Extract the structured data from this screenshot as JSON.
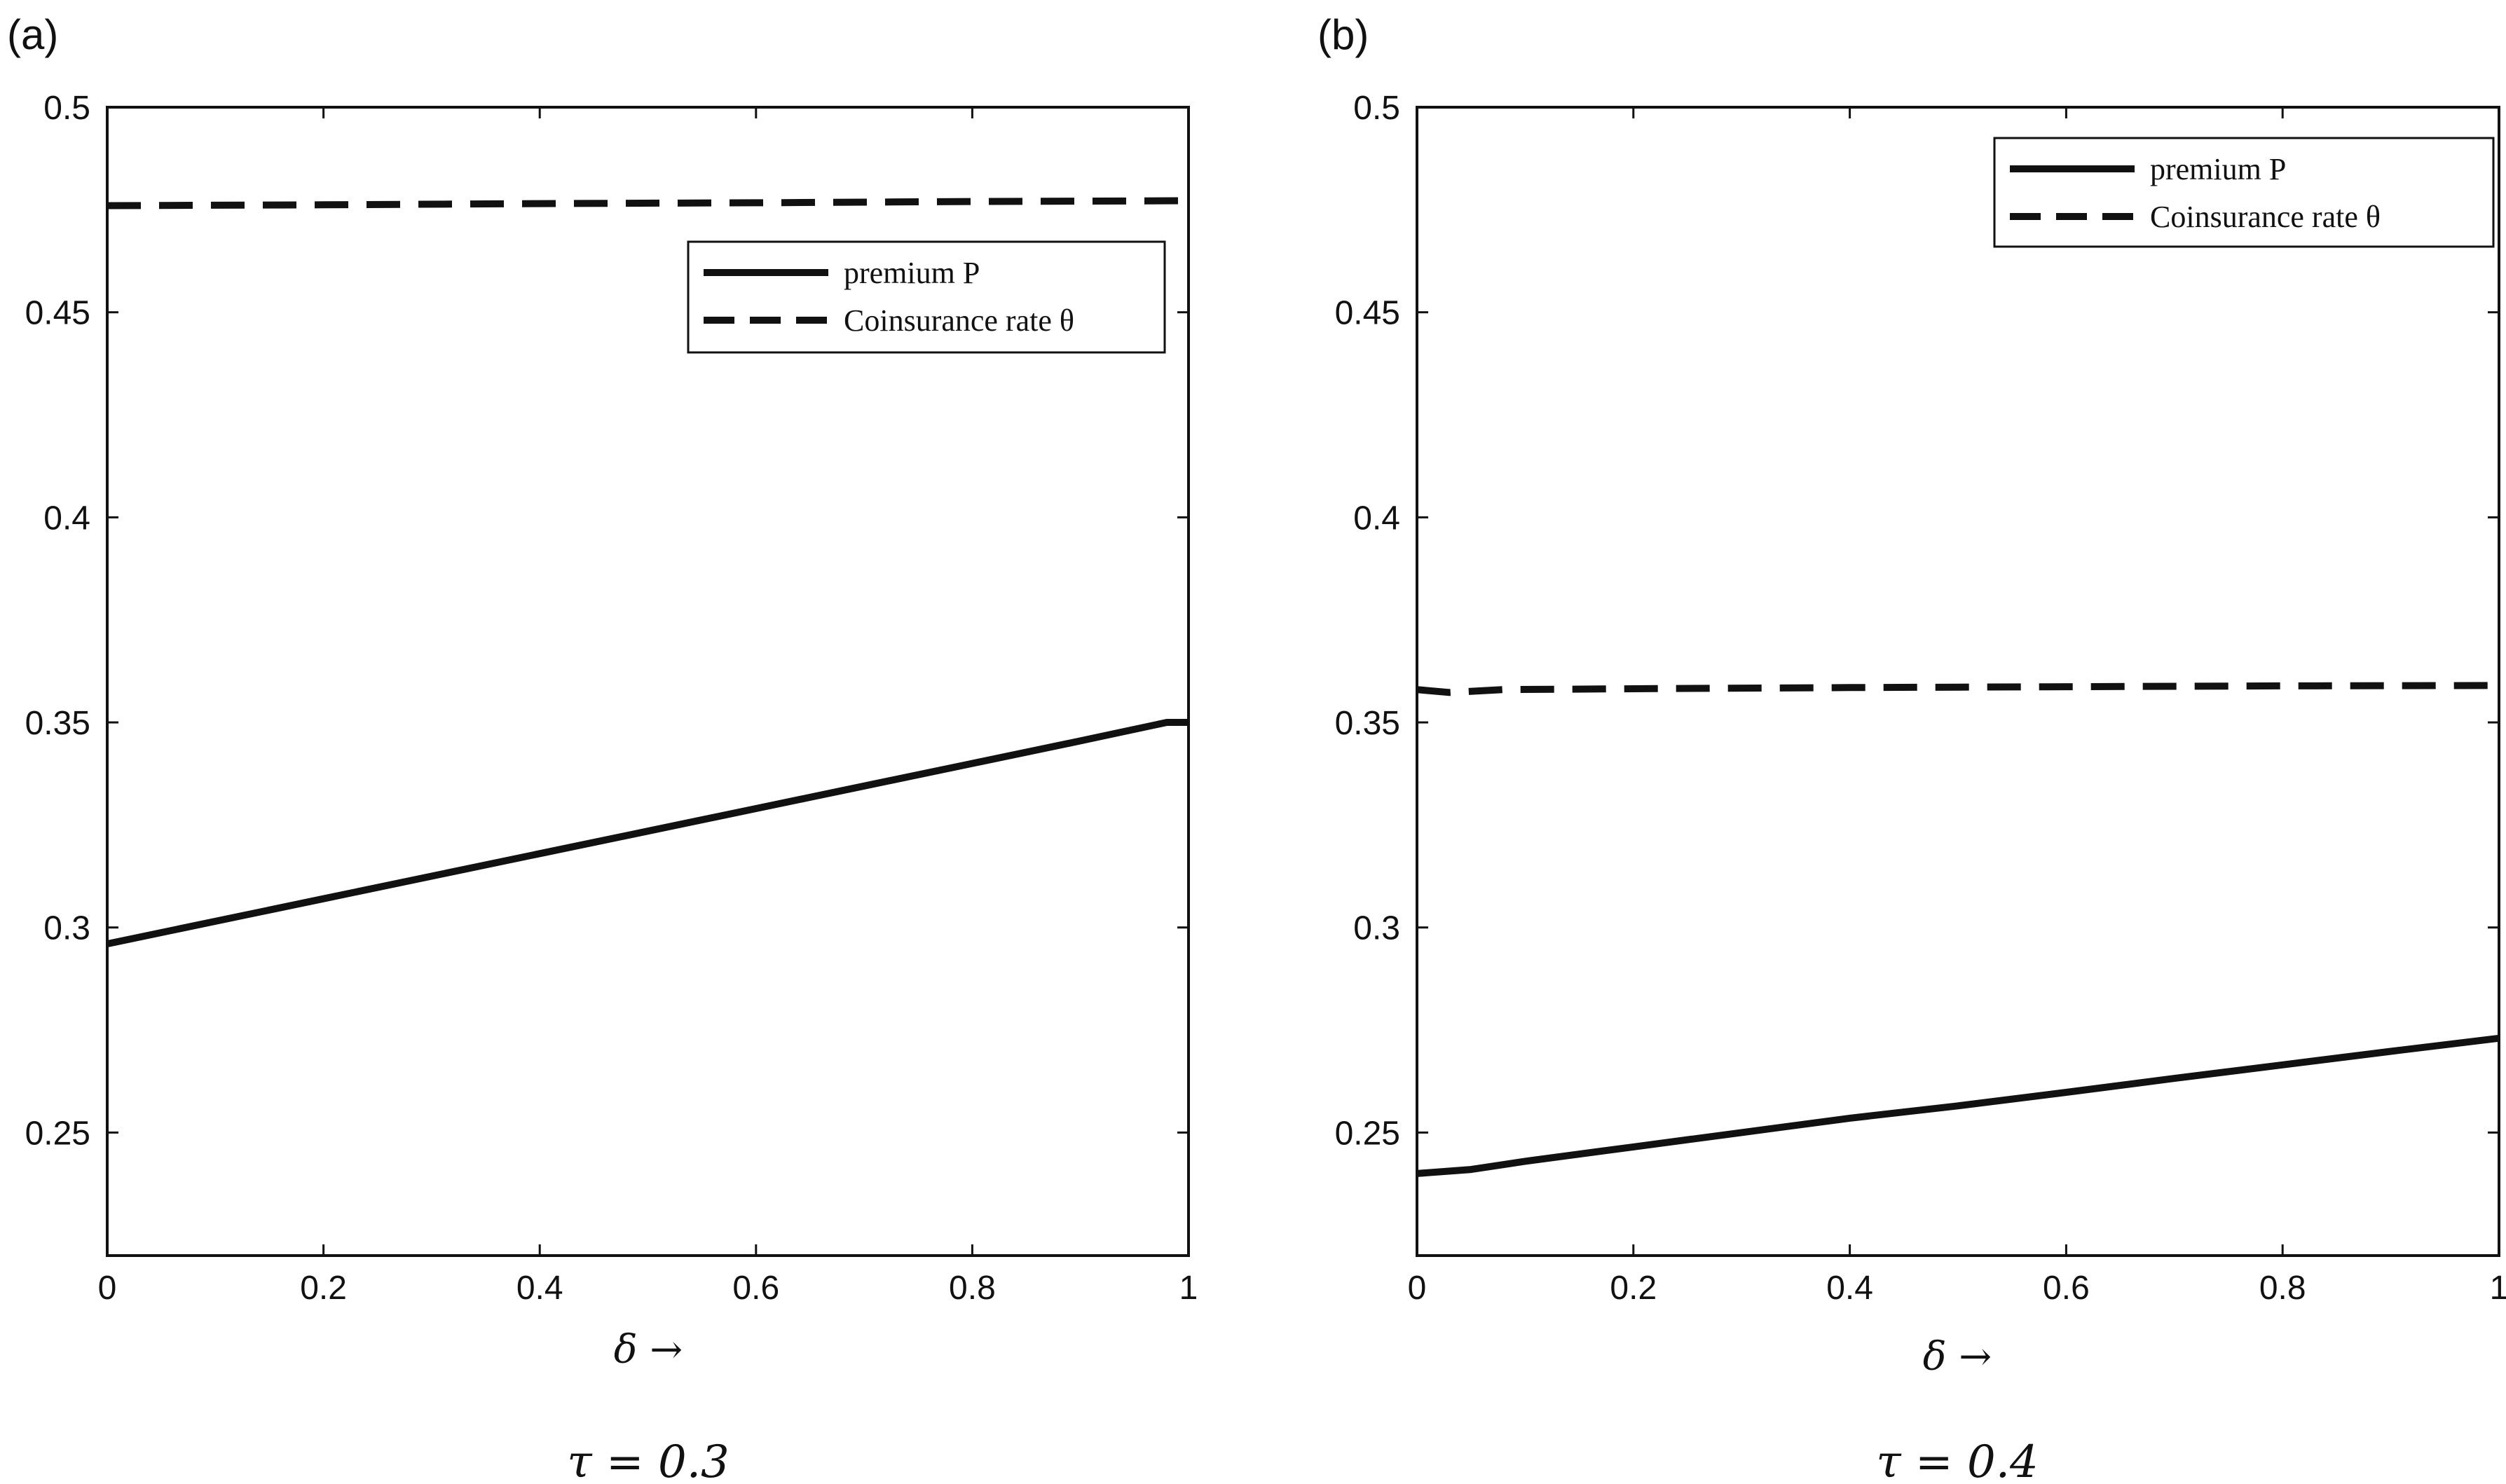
{
  "chart_data": [
    {
      "type": "line",
      "panel_label": "(a)",
      "xlabel": "δ →",
      "caption": "τ = 0.3",
      "xlim": [
        0,
        1
      ],
      "ylim": [
        0.22,
        0.5
      ],
      "xticks": [
        0,
        0.2,
        0.4,
        0.6,
        0.8,
        1
      ],
      "xtick_labels": [
        "0",
        "0.2",
        "0.4",
        "0.6",
        "0.8",
        "1"
      ],
      "yticks": [
        0.25,
        0.3,
        0.35,
        0.4,
        0.45,
        0.5
      ],
      "ytick_labels": [
        "0.25",
        "0.3",
        "0.35",
        "0.4",
        "0.45",
        "0.5"
      ],
      "legend": {
        "placement": "top-right (below top)",
        "entries": [
          {
            "label": "premium P",
            "style": "solid"
          },
          {
            "label": "Coinsurance rate θ",
            "style": "dashed"
          }
        ]
      },
      "series": [
        {
          "name": "premium P",
          "style": "solid",
          "x": [
            0,
            0.1,
            0.2,
            0.3,
            0.4,
            0.5,
            0.6,
            0.7,
            0.8,
            0.9,
            0.98,
            1
          ],
          "values": [
            0.296,
            0.3015,
            0.307,
            0.3125,
            0.318,
            0.3235,
            0.329,
            0.3345,
            0.34,
            0.3455,
            0.35,
            0.35
          ]
        },
        {
          "name": "Coinsurance rate θ",
          "style": "dashed",
          "x": [
            0,
            0.2,
            0.4,
            0.6,
            0.8,
            1
          ],
          "values": [
            0.476,
            0.4762,
            0.4765,
            0.4767,
            0.477,
            0.4772
          ]
        }
      ]
    },
    {
      "type": "line",
      "panel_label": "(b)",
      "xlabel": "δ →",
      "caption": "τ = 0.4",
      "xlim": [
        0,
        1
      ],
      "ylim": [
        0.22,
        0.5
      ],
      "xticks": [
        0,
        0.2,
        0.4,
        0.6,
        0.8,
        1
      ],
      "xtick_labels": [
        "0",
        "0.2",
        "0.4",
        "0.6",
        "0.8",
        "1"
      ],
      "yticks": [
        0.25,
        0.3,
        0.35,
        0.4,
        0.45,
        0.5
      ],
      "ytick_labels": [
        "0.25",
        "0.3",
        "0.35",
        "0.4",
        "0.45",
        "0.5"
      ],
      "legend": {
        "placement": "top-right",
        "entries": [
          {
            "label": "premium P",
            "style": "solid"
          },
          {
            "label": "Coinsurance rate θ",
            "style": "dashed"
          }
        ]
      },
      "series": [
        {
          "name": "premium P",
          "style": "solid",
          "x": [
            0,
            0.05,
            0.1,
            0.2,
            0.3,
            0.4,
            0.5,
            0.6,
            0.7,
            0.8,
            0.9,
            1
          ],
          "values": [
            0.24,
            0.241,
            0.243,
            0.2465,
            0.25,
            0.2535,
            0.2565,
            0.2598,
            0.2632,
            0.2665,
            0.2698,
            0.273
          ]
        },
        {
          "name": "Coinsurance rate θ",
          "style": "dashed",
          "x": [
            0,
            0.03,
            0.08,
            0.2,
            0.4,
            0.6,
            0.8,
            1
          ],
          "values": [
            0.358,
            0.3573,
            0.358,
            0.3582,
            0.3585,
            0.3587,
            0.3589,
            0.359
          ]
        }
      ]
    }
  ]
}
